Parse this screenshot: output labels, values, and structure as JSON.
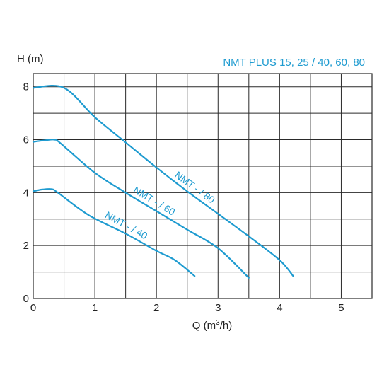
{
  "chart_data": {
    "type": "line",
    "title": "NMT PLUS 15, 25 / 40, 60, 80",
    "xlabel_prefix": "Q (m",
    "xlabel_sup": "3",
    "xlabel_suffix": "/h)",
    "ylabel": "H (m)",
    "xlim": [
      0,
      5.5
    ],
    "ylim": [
      0,
      8.5
    ],
    "x_ticks": [
      0,
      1,
      2,
      3,
      4,
      5
    ],
    "y_ticks": [
      0,
      2,
      4,
      6,
      8
    ],
    "grid": true,
    "series": [
      {
        "name": "NMT - / 80",
        "points": [
          [
            0,
            7.96
          ],
          [
            0.5,
            7.96
          ],
          [
            1.0,
            6.85
          ],
          [
            1.5,
            5.9
          ],
          [
            2.0,
            4.95
          ],
          [
            2.5,
            4.05
          ],
          [
            3.0,
            3.2
          ],
          [
            3.5,
            2.35
          ],
          [
            4.0,
            1.45
          ],
          [
            4.22,
            0.85
          ]
        ]
      },
      {
        "name": "NMT - / 60",
        "points": [
          [
            0,
            5.92
          ],
          [
            0.2,
            5.98
          ],
          [
            0.35,
            6.0
          ],
          [
            0.45,
            5.85
          ],
          [
            1.0,
            4.75
          ],
          [
            1.5,
            4.0
          ],
          [
            2.0,
            3.3
          ],
          [
            2.5,
            2.6
          ],
          [
            3.0,
            1.9
          ],
          [
            3.5,
            0.78
          ]
        ]
      },
      {
        "name": "NMT - / 40",
        "points": [
          [
            0,
            4.05
          ],
          [
            0.15,
            4.12
          ],
          [
            0.3,
            4.13
          ],
          [
            0.4,
            4.0
          ],
          [
            0.9,
            3.15
          ],
          [
            1.5,
            2.45
          ],
          [
            2.0,
            1.8
          ],
          [
            2.3,
            1.45
          ],
          [
            2.62,
            0.85
          ]
        ]
      }
    ]
  },
  "colors": {
    "curve": "#1e9bd0",
    "grid": "#2a2a2a",
    "text": "#222222"
  }
}
